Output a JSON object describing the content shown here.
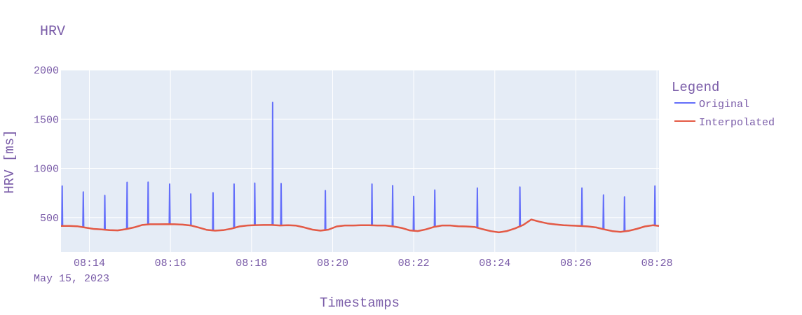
{
  "chart_data": {
    "type": "line",
    "title": "HRV",
    "xlabel": "Timestamps",
    "ylabel": "HRV [ms]",
    "x_date_label": "May 15, 2023",
    "x_tick_labels": [
      "08:14",
      "08:16",
      "08:18",
      "08:20",
      "08:22",
      "08:24",
      "08:26",
      "08:28"
    ],
    "y_tick_labels": [
      "500",
      "1000",
      "1500",
      "2000"
    ],
    "x_ticks_min": [
      14,
      16,
      18,
      20,
      22,
      24,
      26,
      28
    ],
    "y_ticks": [
      500,
      1000,
      1500,
      2000
    ],
    "xlim_min": [
      13.3,
      28.05
    ],
    "ylim": [
      150,
      2000
    ],
    "grid": true,
    "plot_background": "#e5ecf6",
    "text_color": "#7a5ca8",
    "legend": {
      "title": "Legend",
      "placement": "right"
    },
    "series": [
      {
        "name": "Original",
        "color": "#636efa",
        "baseline": [
          [
            13.3,
            415
          ],
          [
            13.5,
            415
          ],
          [
            13.7,
            412
          ],
          [
            13.9,
            398
          ],
          [
            14.1,
            385
          ],
          [
            14.3,
            380
          ],
          [
            14.5,
            372
          ],
          [
            14.7,
            370
          ],
          [
            14.9,
            382
          ],
          [
            15.1,
            400
          ],
          [
            15.3,
            425
          ],
          [
            15.5,
            432
          ],
          [
            15.7,
            432
          ],
          [
            15.9,
            433
          ],
          [
            16.1,
            432
          ],
          [
            16.3,
            428
          ],
          [
            16.5,
            420
          ],
          [
            16.7,
            398
          ],
          [
            16.9,
            375
          ],
          [
            17.1,
            367
          ],
          [
            17.3,
            372
          ],
          [
            17.5,
            387
          ],
          [
            17.7,
            410
          ],
          [
            17.9,
            420
          ],
          [
            18.1,
            423
          ],
          [
            18.3,
            425
          ],
          [
            18.5,
            425
          ],
          [
            18.7,
            420
          ],
          [
            18.9,
            422
          ],
          [
            19.1,
            418
          ],
          [
            19.3,
            400
          ],
          [
            19.5,
            378
          ],
          [
            19.7,
            367
          ],
          [
            19.9,
            378
          ],
          [
            20.1,
            410
          ],
          [
            20.3,
            420
          ],
          [
            20.5,
            420
          ],
          [
            20.7,
            422
          ],
          [
            20.9,
            422
          ],
          [
            21.1,
            420
          ],
          [
            21.3,
            420
          ],
          [
            21.5,
            410
          ],
          [
            21.7,
            395
          ],
          [
            21.9,
            370
          ],
          [
            22.1,
            363
          ],
          [
            22.3,
            380
          ],
          [
            22.5,
            405
          ],
          [
            22.7,
            420
          ],
          [
            22.9,
            420
          ],
          [
            23.1,
            412
          ],
          [
            23.3,
            410
          ],
          [
            23.5,
            405
          ],
          [
            23.7,
            382
          ],
          [
            23.9,
            362
          ],
          [
            24.1,
            350
          ],
          [
            24.3,
            363
          ],
          [
            24.5,
            390
          ],
          [
            24.7,
            425
          ],
          [
            24.9,
            480
          ],
          [
            25.1,
            458
          ],
          [
            25.3,
            440
          ],
          [
            25.5,
            430
          ],
          [
            25.7,
            422
          ],
          [
            25.9,
            418
          ],
          [
            26.1,
            415
          ],
          [
            26.3,
            410
          ],
          [
            26.5,
            400
          ],
          [
            26.7,
            380
          ],
          [
            26.9,
            362
          ],
          [
            27.1,
            355
          ],
          [
            27.3,
            365
          ],
          [
            27.5,
            385
          ],
          [
            27.7,
            410
          ],
          [
            27.9,
            422
          ],
          [
            28.05,
            415
          ]
        ],
        "spikes": [
          [
            13.33,
            820
          ],
          [
            13.85,
            760
          ],
          [
            14.38,
            725
          ],
          [
            14.93,
            858
          ],
          [
            15.45,
            860
          ],
          [
            15.98,
            840
          ],
          [
            16.5,
            740
          ],
          [
            17.05,
            752
          ],
          [
            17.57,
            840
          ],
          [
            18.08,
            850
          ],
          [
            18.52,
            1670
          ],
          [
            18.73,
            845
          ],
          [
            19.82,
            775
          ],
          [
            20.97,
            840
          ],
          [
            21.48,
            825
          ],
          [
            22.0,
            715
          ],
          [
            22.52,
            780
          ],
          [
            23.57,
            800
          ],
          [
            24.62,
            810
          ],
          [
            26.15,
            800
          ],
          [
            26.68,
            730
          ],
          [
            27.2,
            710
          ],
          [
            27.95,
            820
          ]
        ]
      },
      {
        "name": "Interpolated",
        "color": "#e45a45",
        "values_same_as_original_baseline": true
      }
    ]
  }
}
